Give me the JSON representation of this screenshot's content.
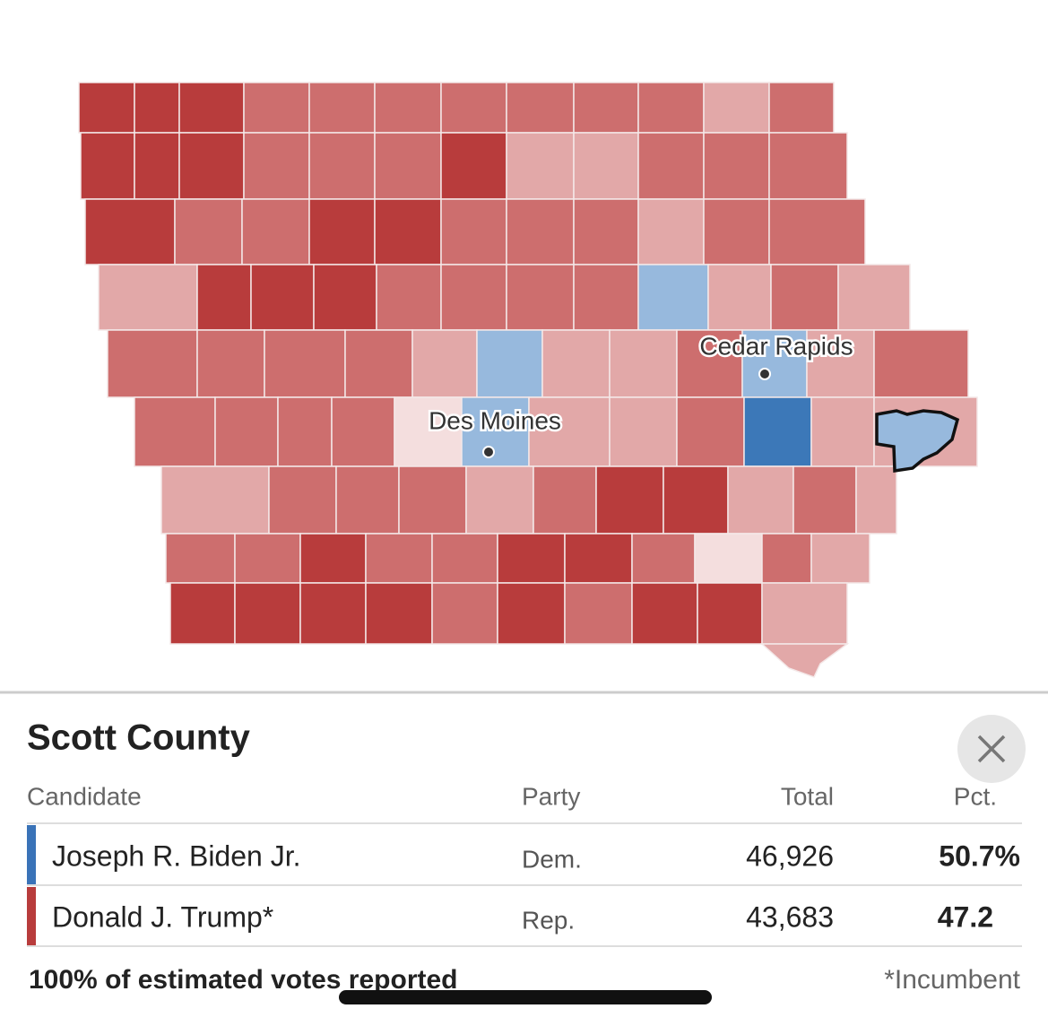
{
  "map": {
    "cities": [
      "Des Moines",
      "Cedar Rapids"
    ]
  },
  "panel": {
    "title": "Scott County",
    "table": {
      "headers": [
        "Candidate",
        "Party",
        "Total",
        "Pct."
      ],
      "rows": [
        [
          "Joseph R. Biden Jr.",
          "Dem.",
          "46,926",
          "50.7%"
        ],
        [
          "Donald J. Trump*",
          "Rep.",
          "43,683",
          "47.2"
        ]
      ]
    },
    "footer": "100% of estimated votes reported",
    "note": "*Incumbent"
  }
}
